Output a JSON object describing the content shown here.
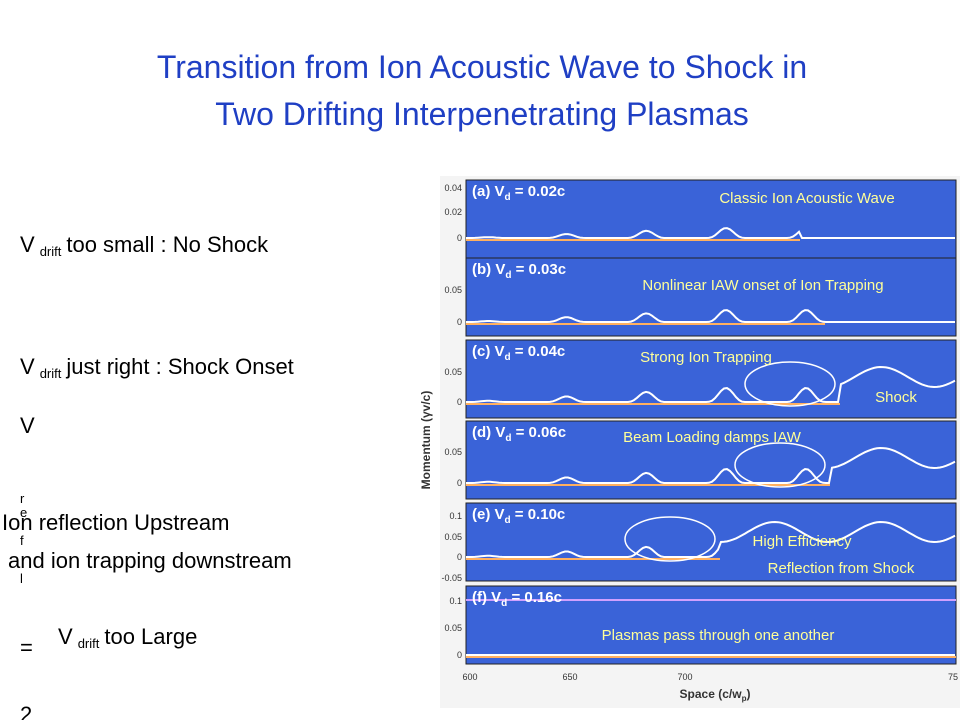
{
  "title": {
    "lines": [
      "Transition from Ion Acoustic Wave to Shock in",
      "Two Drifting Interpenetrating Plasmas"
    ]
  },
  "left": {
    "small": {
      "v": "V",
      "sub": "drift",
      "text": "too small : No Shock"
    },
    "right": {
      "v": "V",
      "sub": "drift",
      "text": "just right : Shock Onset"
    },
    "rel": {
      "v": "V",
      "letters": [
        "r",
        "e",
        "f",
        "l"
      ],
      "eq": "=",
      "two": "2"
    },
    "reflection": [
      "Ion reflection Upstream",
      "and ion trapping downstream"
    ],
    "large": {
      "v": "V",
      "sub": "drift",
      "text": "too Large"
    }
  },
  "figure": {
    "y_label": "Momentum (γv/c)",
    "x_label": "Space (c/w",
    "x_label_sub": "p",
    "x_label_end": ")",
    "x_ticks": [
      "600",
      "650",
      "700",
      "75"
    ],
    "panels": [
      {
        "label": "(a) V",
        "sub": "d",
        "value": " = 0.02c",
        "ticks": [
          "0.04",
          "0.02",
          "0"
        ]
      },
      {
        "label": "(b) V",
        "sub": "d",
        "value": " = 0.03c",
        "ticks": [
          "0.05",
          "0"
        ]
      },
      {
        "label": "(c) V",
        "sub": "d",
        "value": " = 0.04c",
        "ticks": [
          "0.05",
          "0"
        ]
      },
      {
        "label": "(d) V",
        "sub": "d",
        "value": " = 0.06c",
        "ticks": [
          "0.05",
          "0"
        ]
      },
      {
        "label": "(e) V",
        "sub": "d",
        "value": " = 0.10c",
        "ticks": [
          "0.1",
          "0.05",
          "0",
          "-0.05"
        ]
      },
      {
        "label": "(f) V",
        "sub": "d",
        "value": " = 0.16c",
        "ticks": [
          "0.1",
          "0.05",
          "0"
        ]
      }
    ],
    "annotations": [
      "Classic Ion Acoustic Wave",
      "Nonlinear IAW onset of Ion Trapping",
      "Strong Ion Trapping",
      "Shock",
      "Beam Loading damps IAW",
      "High Efficiency",
      "Reflection from Shock",
      "Plasmas pass through one another"
    ]
  }
}
